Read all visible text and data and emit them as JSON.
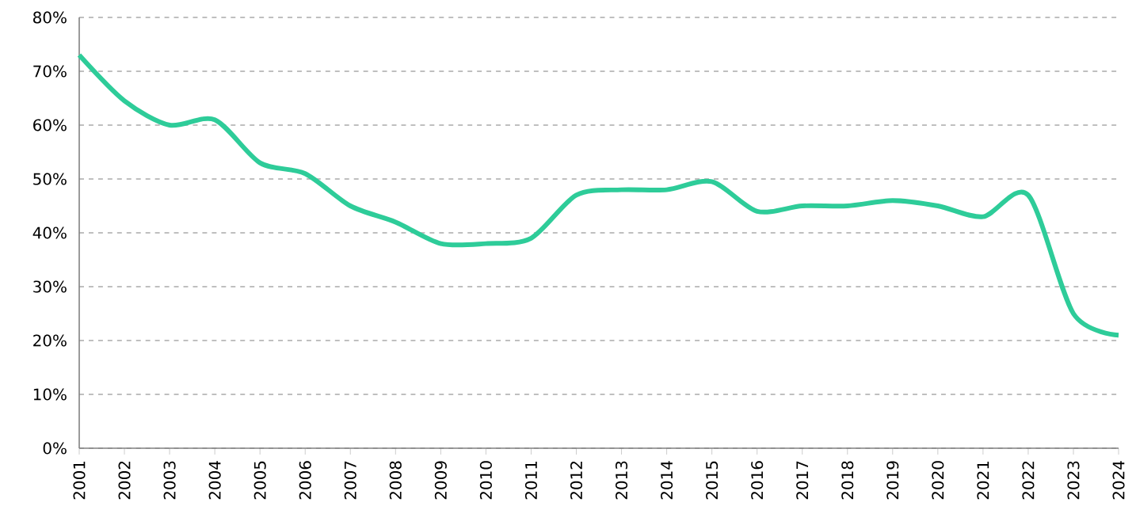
{
  "chart_data": {
    "type": "line",
    "categories": [
      "2001",
      "2002",
      "2003",
      "2004",
      "2005",
      "2006",
      "2007",
      "2008",
      "2009",
      "2010",
      "2011",
      "2012",
      "2013",
      "2014",
      "2015",
      "2016",
      "2017",
      "2018",
      "2019",
      "2020",
      "2021",
      "2022",
      "2023",
      "2024"
    ],
    "series": [
      {
        "color": "#2ecc99",
        "values": [
          73,
          64.5,
          60,
          61,
          53,
          51,
          45,
          42,
          38,
          38,
          39,
          47,
          48,
          48,
          49.5,
          44,
          45,
          45,
          46,
          45,
          43,
          47,
          25,
          21
        ]
      }
    ],
    "ylim": [
      0,
      80
    ],
    "yticks": [
      {
        "value": 0,
        "label": "0%"
      },
      {
        "value": 10,
        "label": "10%"
      },
      {
        "value": 20,
        "label": "20%"
      },
      {
        "value": 30,
        "label": "30%"
      },
      {
        "value": 40,
        "label": "40%"
      },
      {
        "value": 50,
        "label": "50%"
      },
      {
        "value": 60,
        "label": "60%"
      },
      {
        "value": 70,
        "label": "70%"
      },
      {
        "value": 80,
        "label": "80%"
      }
    ],
    "grid": "y",
    "marker": "none",
    "line_style": "solid"
  }
}
